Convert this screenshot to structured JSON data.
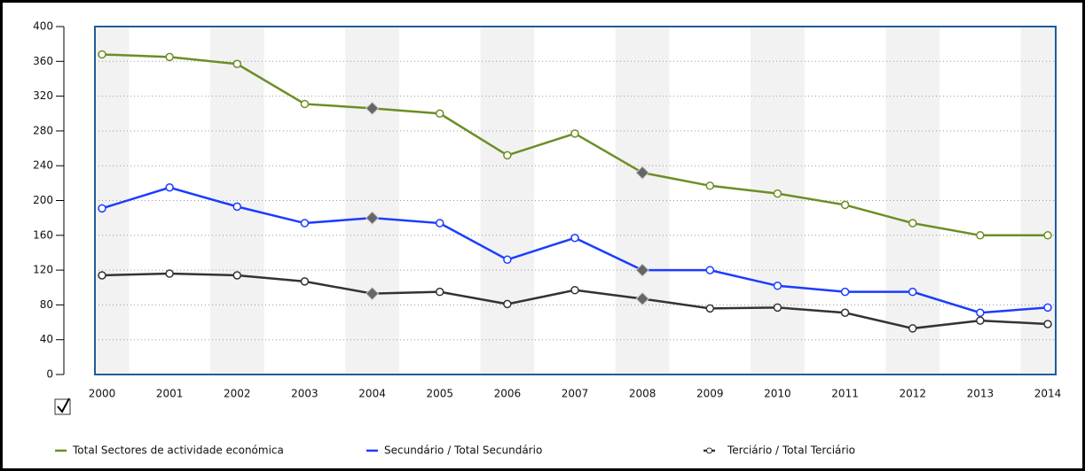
{
  "chart_data": {
    "type": "line",
    "x": [
      "2000",
      "2001",
      "2002",
      "2003",
      "2004",
      "2005",
      "2006",
      "2007",
      "2008",
      "2009",
      "2010",
      "2011",
      "2012",
      "2013",
      "2014"
    ],
    "series": [
      {
        "name": "Total Sectores de actividade económica",
        "color": "#6b8e23",
        "values": [
          368,
          365,
          357,
          311,
          306,
          300,
          252,
          277,
          232,
          217,
          208,
          195,
          174,
          160,
          160
        ]
      },
      {
        "name": "Secundário / Total Secundário",
        "color": "#1a3cff",
        "values": [
          191,
          215,
          193,
          174,
          180,
          174,
          132,
          157,
          120,
          120,
          102,
          95,
          95,
          71,
          77
        ]
      },
      {
        "name": "Terciário / Total Terciário",
        "color": "#333333",
        "values": [
          114,
          116,
          114,
          107,
          93,
          95,
          81,
          97,
          87,
          76,
          77,
          71,
          53,
          62,
          58
        ]
      }
    ],
    "ylim": [
      0,
      400
    ],
    "yticks": [
      0,
      40,
      80,
      120,
      160,
      200,
      240,
      280,
      320,
      360,
      400
    ],
    "grid": true,
    "diamond_indices": [
      4,
      8
    ]
  }
}
